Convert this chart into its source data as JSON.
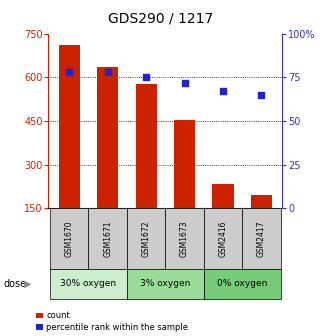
{
  "title": "GDS290 / 1217",
  "samples": [
    "GSM1670",
    "GSM1671",
    "GSM1672",
    "GSM1673",
    "GSM2416",
    "GSM2417"
  ],
  "bar_values": [
    710,
    635,
    578,
    455,
    235,
    195
  ],
  "percentile_values": [
    78,
    78,
    75,
    72,
    67,
    65
  ],
  "bar_color": "#cc2200",
  "dot_color": "#2222cc",
  "ylim_left": [
    150,
    750
  ],
  "ylim_right": [
    0,
    100
  ],
  "yticks_left": [
    150,
    300,
    450,
    600,
    750
  ],
  "yticks_right": [
    0,
    25,
    50,
    75,
    100
  ],
  "grid_lines": [
    300,
    450,
    600
  ],
  "groups": [
    {
      "label": "30% oxygen",
      "indices": [
        0,
        1
      ],
      "color": "#cceecc"
    },
    {
      "label": "3% oxygen",
      "indices": [
        2,
        3
      ],
      "color": "#99dd99"
    },
    {
      "label": "0% oxygen",
      "indices": [
        4,
        5
      ],
      "color": "#77cc77"
    }
  ],
  "dose_label": "dose",
  "legend_count": "count",
  "legend_percentile": "percentile rank within the sample",
  "background_color": "#ffffff",
  "left_tick_color": "#cc2200",
  "right_tick_color": "#3333cc",
  "sample_box_color": "#cccccc",
  "bar_width": 0.55
}
